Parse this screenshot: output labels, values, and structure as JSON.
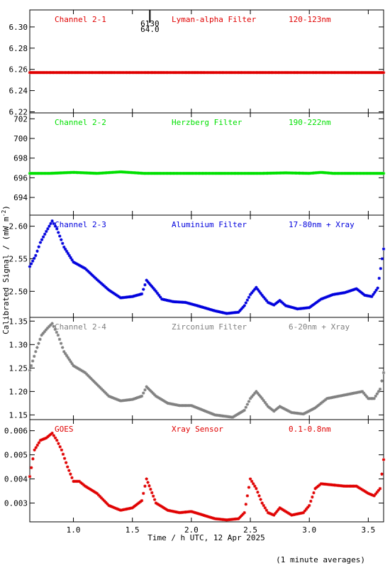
{
  "chart_data": {
    "type": "scatter",
    "xlabel": "Time / h UTC, 12 Apr 2025",
    "ylabel": "Calibrated Signal / (mW m",
    "ylabel_sup": "-2",
    "ylabel_close": ")",
    "footnote": "(1 minute averages)",
    "xlim": [
      0.63,
      3.63
    ],
    "xticks": [
      {
        "v": 1.0,
        "label": "1.0"
      },
      {
        "v": 1.5,
        "label": "1.5"
      },
      {
        "v": 2.0,
        "label": "2.0"
      },
      {
        "v": 2.5,
        "label": "2.5"
      },
      {
        "v": 3.0,
        "label": "3.0"
      },
      {
        "v": 3.5,
        "label": "3.5"
      }
    ],
    "panels": [
      {
        "channel": "Channel 2-1",
        "filter": "Lyman-alpha Filter",
        "band": "120-123nm",
        "color": "#e00000",
        "ylim": [
          6.219,
          6.316
        ],
        "yticks": [
          "6.22",
          "6.24",
          "6.26",
          "6.28",
          "6.30"
        ],
        "yticks_v": [
          6.22,
          6.24,
          6.26,
          6.28,
          6.3
        ],
        "marker_x": 1.6,
        "marker_labels": [
          "6130",
          "64.0"
        ],
        "points": [
          [
            0.63,
            6.257
          ],
          [
            0.75,
            6.257
          ],
          [
            0.9,
            6.257
          ],
          [
            1.05,
            6.257
          ],
          [
            1.2,
            6.257
          ],
          [
            1.35,
            6.257
          ],
          [
            1.5,
            6.257
          ],
          [
            1.65,
            6.257
          ],
          [
            1.8,
            6.257
          ],
          [
            1.95,
            6.257
          ],
          [
            2.1,
            6.257
          ],
          [
            2.25,
            6.257
          ],
          [
            2.4,
            6.257
          ],
          [
            2.55,
            6.257
          ],
          [
            2.7,
            6.257
          ],
          [
            2.85,
            6.257
          ],
          [
            3.0,
            6.257
          ],
          [
            3.15,
            6.257
          ],
          [
            3.3,
            6.257
          ],
          [
            3.45,
            6.257
          ],
          [
            3.63,
            6.257
          ]
        ]
      },
      {
        "channel": "Channel 2-2",
        "filter": "Herzberg Filter",
        "band": "190-222nm",
        "color": "#00e000",
        "ylim": [
          692.2,
          702.6
        ],
        "yticks": [
          "694",
          "696",
          "698",
          "700",
          "702"
        ],
        "yticks_v": [
          694,
          696,
          698,
          700,
          702
        ],
        "points": [
          [
            0.63,
            696.45
          ],
          [
            0.8,
            696.45
          ],
          [
            1.0,
            696.55
          ],
          [
            1.2,
            696.45
          ],
          [
            1.4,
            696.6
          ],
          [
            1.6,
            696.45
          ],
          [
            1.8,
            696.45
          ],
          [
            2.0,
            696.45
          ],
          [
            2.2,
            696.45
          ],
          [
            2.4,
            696.45
          ],
          [
            2.6,
            696.45
          ],
          [
            2.8,
            696.5
          ],
          [
            3.0,
            696.45
          ],
          [
            3.1,
            696.55
          ],
          [
            3.2,
            696.45
          ],
          [
            3.4,
            696.45
          ],
          [
            3.63,
            696.45
          ]
        ]
      },
      {
        "channel": "Channel 2-3",
        "filter": "Aluminium Filter",
        "band": "17-80nm + Xray",
        "color": "#0000dd",
        "ylim": [
          2.46,
          2.617
        ],
        "yticks": [
          "2.50",
          "2.55",
          "2.60"
        ],
        "yticks_v": [
          2.5,
          2.55,
          2.6
        ],
        "points": [
          [
            0.63,
            2.538
          ],
          [
            0.68,
            2.555
          ],
          [
            0.72,
            2.575
          ],
          [
            0.77,
            2.592
          ],
          [
            0.82,
            2.608
          ],
          [
            0.86,
            2.596
          ],
          [
            0.92,
            2.568
          ],
          [
            1.0,
            2.545
          ],
          [
            1.1,
            2.535
          ],
          [
            1.2,
            2.518
          ],
          [
            1.3,
            2.502
          ],
          [
            1.4,
            2.49
          ],
          [
            1.5,
            2.492
          ],
          [
            1.58,
            2.496
          ],
          [
            1.62,
            2.517
          ],
          [
            1.7,
            2.5
          ],
          [
            1.75,
            2.488
          ],
          [
            1.85,
            2.484
          ],
          [
            1.95,
            2.483
          ],
          [
            2.05,
            2.478
          ],
          [
            2.2,
            2.47
          ],
          [
            2.3,
            2.466
          ],
          [
            2.4,
            2.468
          ],
          [
            2.45,
            2.478
          ],
          [
            2.5,
            2.495
          ],
          [
            2.55,
            2.506
          ],
          [
            2.6,
            2.494
          ],
          [
            2.65,
            2.483
          ],
          [
            2.7,
            2.479
          ],
          [
            2.75,
            2.486
          ],
          [
            2.8,
            2.478
          ],
          [
            2.9,
            2.473
          ],
          [
            3.0,
            2.475
          ],
          [
            3.1,
            2.488
          ],
          [
            3.2,
            2.495
          ],
          [
            3.3,
            2.498
          ],
          [
            3.4,
            2.504
          ],
          [
            3.47,
            2.494
          ],
          [
            3.53,
            2.492
          ],
          [
            3.58,
            2.505
          ],
          [
            3.63,
            2.565
          ]
        ]
      },
      {
        "channel": "Channel 2-4",
        "filter": "Zirconium Filter",
        "band": "6-20nm + Xray",
        "color": "#808080",
        "ylim": [
          1.14,
          1.358
        ],
        "yticks": [
          "1.15",
          "1.20",
          "1.25",
          "1.30",
          "1.35"
        ],
        "yticks_v": [
          1.15,
          1.2,
          1.25,
          1.3,
          1.35
        ],
        "points": [
          [
            0.63,
            1.245
          ],
          [
            0.68,
            1.285
          ],
          [
            0.73,
            1.32
          ],
          [
            0.78,
            1.335
          ],
          [
            0.82,
            1.345
          ],
          [
            0.87,
            1.32
          ],
          [
            0.92,
            1.285
          ],
          [
            1.0,
            1.255
          ],
          [
            1.1,
            1.24
          ],
          [
            1.2,
            1.215
          ],
          [
            1.3,
            1.19
          ],
          [
            1.4,
            1.18
          ],
          [
            1.5,
            1.183
          ],
          [
            1.58,
            1.19
          ],
          [
            1.62,
            1.21
          ],
          [
            1.7,
            1.19
          ],
          [
            1.8,
            1.175
          ],
          [
            1.9,
            1.17
          ],
          [
            2.0,
            1.17
          ],
          [
            2.1,
            1.16
          ],
          [
            2.2,
            1.15
          ],
          [
            2.35,
            1.145
          ],
          [
            2.45,
            1.16
          ],
          [
            2.5,
            1.185
          ],
          [
            2.55,
            1.2
          ],
          [
            2.6,
            1.185
          ],
          [
            2.65,
            1.168
          ],
          [
            2.7,
            1.158
          ],
          [
            2.75,
            1.168
          ],
          [
            2.85,
            1.155
          ],
          [
            2.95,
            1.152
          ],
          [
            3.05,
            1.165
          ],
          [
            3.15,
            1.185
          ],
          [
            3.25,
            1.19
          ],
          [
            3.35,
            1.195
          ],
          [
            3.45,
            1.2
          ],
          [
            3.5,
            1.185
          ],
          [
            3.55,
            1.185
          ],
          [
            3.6,
            1.205
          ],
          [
            3.63,
            1.24
          ]
        ]
      },
      {
        "channel": "GOES",
        "filter": "Xray Sensor",
        "band": "0.1-0.8nm",
        "color": "#e00000",
        "ylim": [
          0.00222,
          0.00646
        ],
        "yticks": [
          "0.003",
          "0.004",
          "0.005",
          "0.006"
        ],
        "yticks_v": [
          0.003,
          0.004,
          0.005,
          0.006
        ],
        "points": [
          [
            0.63,
            0.0041
          ],
          [
            0.67,
            0.0052
          ],
          [
            0.72,
            0.0056
          ],
          [
            0.77,
            0.0057
          ],
          [
            0.82,
            0.0059
          ],
          [
            0.86,
            0.0056
          ],
          [
            0.9,
            0.0052
          ],
          [
            0.95,
            0.0045
          ],
          [
            1.0,
            0.0039
          ],
          [
            1.05,
            0.0039
          ],
          [
            1.1,
            0.0037
          ],
          [
            1.2,
            0.0034
          ],
          [
            1.3,
            0.0029
          ],
          [
            1.4,
            0.0027
          ],
          [
            1.5,
            0.0028
          ],
          [
            1.58,
            0.0031
          ],
          [
            1.62,
            0.004
          ],
          [
            1.7,
            0.003
          ],
          [
            1.8,
            0.0027
          ],
          [
            1.9,
            0.0026
          ],
          [
            2.0,
            0.00265
          ],
          [
            2.1,
            0.0025
          ],
          [
            2.2,
            0.00235
          ],
          [
            2.3,
            0.0023
          ],
          [
            2.4,
            0.00235
          ],
          [
            2.45,
            0.0026
          ],
          [
            2.5,
            0.004
          ],
          [
            2.55,
            0.0036
          ],
          [
            2.6,
            0.003
          ],
          [
            2.65,
            0.0026
          ],
          [
            2.7,
            0.0025
          ],
          [
            2.75,
            0.0028
          ],
          [
            2.85,
            0.0025
          ],
          [
            2.95,
            0.0026
          ],
          [
            3.0,
            0.0029
          ],
          [
            3.05,
            0.0036
          ],
          [
            3.1,
            0.0038
          ],
          [
            3.2,
            0.00375
          ],
          [
            3.3,
            0.0037
          ],
          [
            3.4,
            0.0037
          ],
          [
            3.5,
            0.0034
          ],
          [
            3.55,
            0.0033
          ],
          [
            3.6,
            0.0036
          ],
          [
            3.63,
            0.0048
          ]
        ]
      }
    ]
  }
}
